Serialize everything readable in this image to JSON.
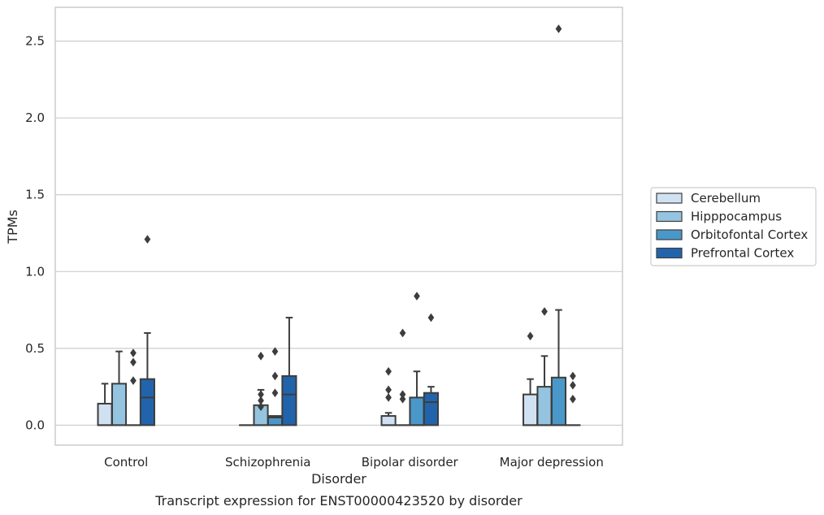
{
  "chart_data": {
    "type": "box",
    "caption": "Transcript expression for ENST00000423520 by disorder",
    "xlabel": "Disorder",
    "ylabel": "TPMs",
    "ylim": [
      -0.13,
      2.72
    ],
    "yticks": [
      0.0,
      0.5,
      1.0,
      1.5,
      2.0,
      2.5
    ],
    "ytick_labels": [
      "0.0",
      "0.5",
      "1.0",
      "1.5",
      "2.0",
      "2.5"
    ],
    "grid": "horizontal",
    "legend_position": "right",
    "categories": [
      "Control",
      "Schizophrenia",
      "Bipolar disorder",
      "Major depression"
    ],
    "series": [
      {
        "name": "Cerebellum",
        "color": "#d0e1f2",
        "boxes": [
          {
            "whisker_low": 0,
            "q1": 0,
            "median": 0,
            "q3": 0.14,
            "whisker_high": 0.27,
            "outliers": []
          },
          {
            "whisker_low": 0,
            "q1": 0,
            "median": 0,
            "q3": 0,
            "whisker_high": 0,
            "outliers": []
          },
          {
            "whisker_low": 0,
            "q1": 0,
            "median": 0,
            "q3": 0.06,
            "whisker_high": 0.08,
            "outliers": [
              0.18,
              0.23,
              0.35
            ]
          },
          {
            "whisker_low": 0,
            "q1": 0,
            "median": 0,
            "q3": 0.2,
            "whisker_high": 0.3,
            "outliers": [
              0.58
            ]
          }
        ]
      },
      {
        "name": "Hipppocampus",
        "color": "#94c4df",
        "boxes": [
          {
            "whisker_low": 0,
            "q1": 0,
            "median": 0,
            "q3": 0.27,
            "whisker_high": 0.48,
            "outliers": []
          },
          {
            "whisker_low": 0,
            "q1": 0,
            "median": 0,
            "q3": 0.13,
            "whisker_high": 0.23,
            "outliers": [
              0.12,
              0.16,
              0.2,
              0.45
            ]
          },
          {
            "whisker_low": 0,
            "q1": 0,
            "median": 0,
            "q3": 0,
            "whisker_high": 0,
            "outliers": [
              0.17,
              0.2,
              0.6
            ]
          },
          {
            "whisker_low": 0,
            "q1": 0,
            "median": 0,
            "q3": 0.25,
            "whisker_high": 0.45,
            "outliers": [
              0.74
            ]
          }
        ]
      },
      {
        "name": "Orbitofontal Cortex",
        "color": "#4a98c9",
        "boxes": [
          {
            "whisker_low": 0,
            "q1": 0,
            "median": 0,
            "q3": 0,
            "whisker_high": 0,
            "outliers": [
              0.29,
              0.41,
              0.47
            ]
          },
          {
            "whisker_low": 0,
            "q1": 0,
            "median": 0.05,
            "q3": 0.06,
            "whisker_high": 0.06,
            "outliers": [
              0.21,
              0.32,
              0.48
            ]
          },
          {
            "whisker_low": 0,
            "q1": 0,
            "median": 0,
            "q3": 0.18,
            "whisker_high": 0.35,
            "outliers": [
              0.84
            ]
          },
          {
            "whisker_low": 0,
            "q1": 0,
            "median": 0,
            "q3": 0.31,
            "whisker_high": 0.75,
            "outliers": [
              2.58
            ]
          }
        ]
      },
      {
        "name": "Prefrontal Cortex",
        "color": "#2164ab",
        "boxes": [
          {
            "whisker_low": 0,
            "q1": 0,
            "median": 0.18,
            "q3": 0.3,
            "whisker_high": 0.6,
            "outliers": [
              1.21
            ]
          },
          {
            "whisker_low": 0,
            "q1": 0,
            "median": 0.2,
            "q3": 0.32,
            "whisker_high": 0.7,
            "outliers": []
          },
          {
            "whisker_low": 0,
            "q1": 0,
            "median": 0.15,
            "q3": 0.21,
            "whisker_high": 0.25,
            "outliers": [
              0.7
            ]
          },
          {
            "whisker_low": 0,
            "q1": 0,
            "median": 0,
            "q3": 0,
            "whisker_high": 0,
            "outliers": [
              0.17,
              0.26,
              0.32
            ]
          }
        ]
      }
    ]
  }
}
